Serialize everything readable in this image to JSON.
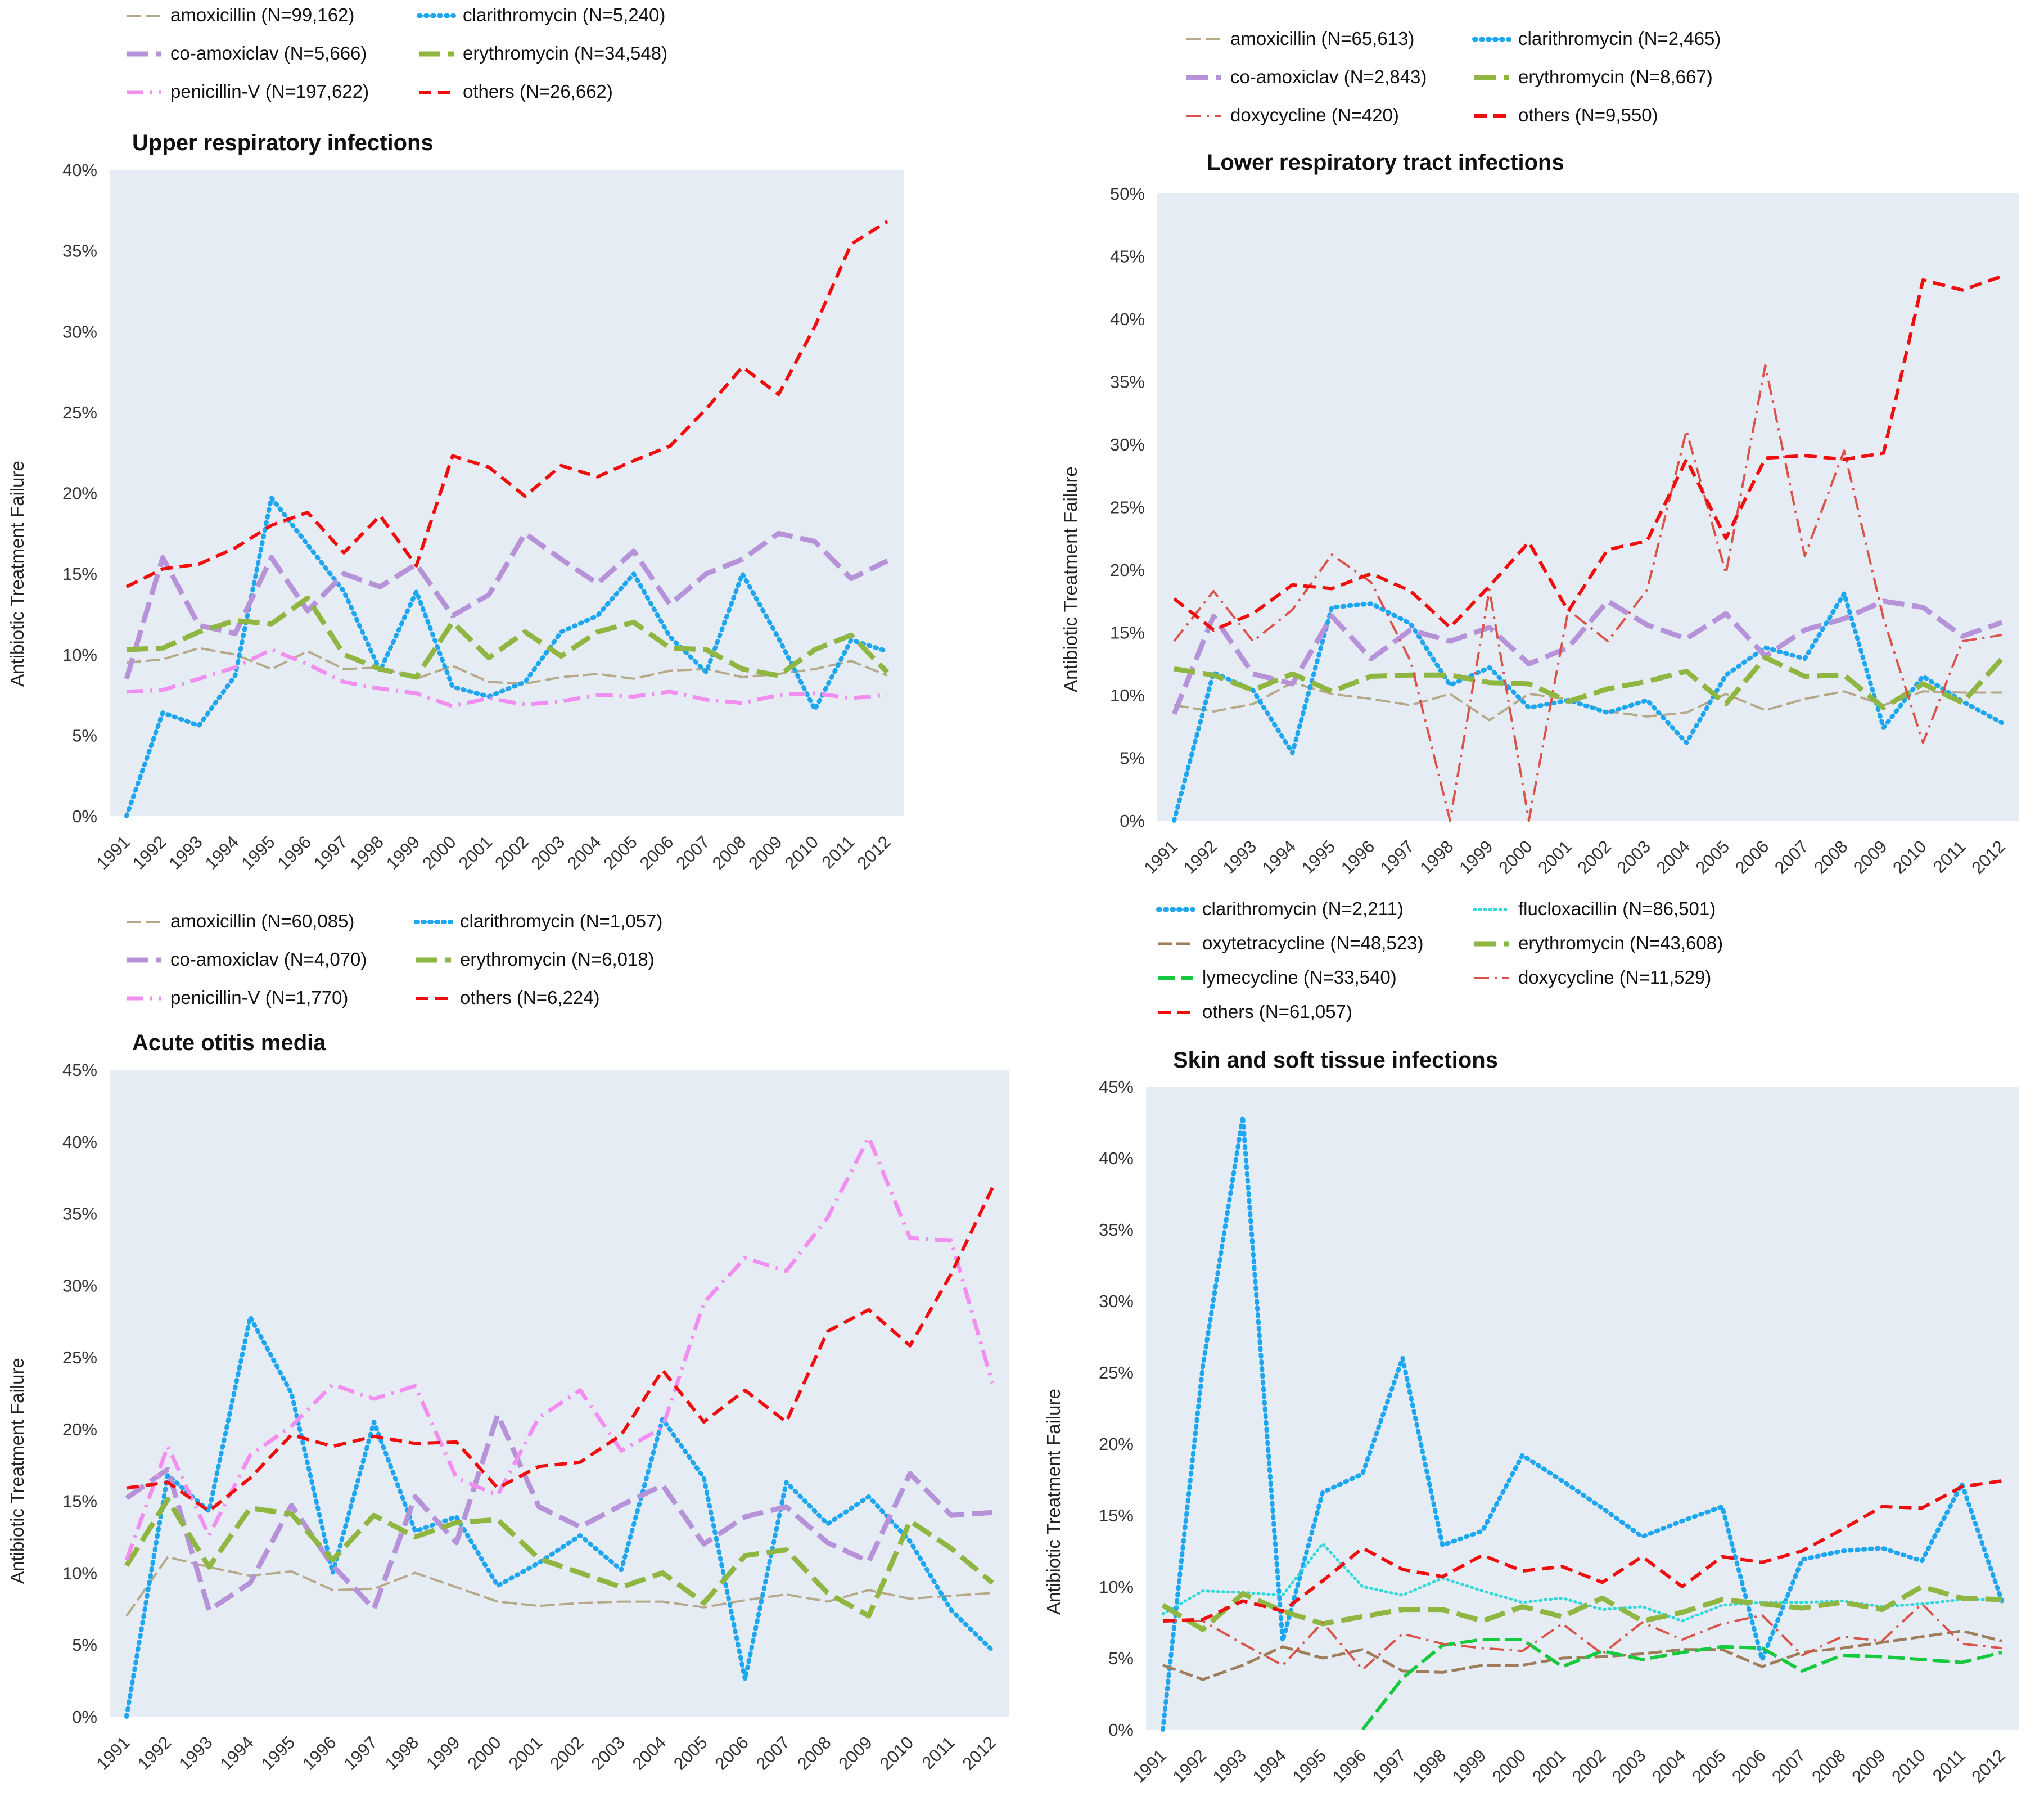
{
  "figure": {
    "y_axis_label": "Antibiotic Treatment Failure",
    "years": [
      "1991",
      "1992",
      "1993",
      "1994",
      "1995",
      "1996",
      "1997",
      "1998",
      "1999",
      "2000",
      "2001",
      "2002",
      "2003",
      "2004",
      "2005",
      "2006",
      "2007",
      "2008",
      "2009",
      "2010",
      "2011",
      "2012"
    ]
  },
  "styles": {
    "amoxicillin": {
      "color": "#b5a98a",
      "dash": "26,8",
      "width": 4
    },
    "clarithromycin": {
      "color": "#1ea7f0",
      "dash": "3,9",
      "width": 8,
      "cap": "round"
    },
    "co-amoxiclav": {
      "color": "#b693d9",
      "dash": "38,14",
      "width": 9
    },
    "erythromycin": {
      "color": "#8fb640",
      "dash": "38,14",
      "width": 9
    },
    "penicillin-V": {
      "color": "#f28ef0",
      "dash": "30,12,4,12",
      "width": 7
    },
    "others": {
      "color": "#f00d0d",
      "dash": "22,12",
      "width": 6
    },
    "doxycycline": {
      "color": "#d9534a",
      "dash": "26,10,4,10",
      "width": 4
    },
    "flucloxacillin": {
      "color": "#30d8d8",
      "dash": "2,7",
      "width": 5,
      "cap": "round"
    },
    "oxytetracycline": {
      "color": "#a07d5a",
      "dash": "24,8",
      "width": 5
    },
    "lymecycline": {
      "color": "#16c93e",
      "dash": "30,10",
      "width": 6
    }
  },
  "chart_data": [
    {
      "type": "line",
      "title": "Upper respiratory infections",
      "xlabel": "",
      "ylabel": "Antibiotic Treatment Failure",
      "ylim": [
        0,
        40
      ],
      "yticks": [
        "0%",
        "5%",
        "10%",
        "15%",
        "20%",
        "25%",
        "30%",
        "35%",
        "40%"
      ],
      "categories": [
        "1991",
        "1992",
        "1993",
        "1994",
        "1995",
        "1996",
        "1997",
        "1998",
        "1999",
        "2000",
        "2001",
        "2002",
        "2003",
        "2004",
        "2005",
        "2006",
        "2007",
        "2008",
        "2009",
        "2010",
        "2011",
        "2012"
      ],
      "legend_columns": 2,
      "series": [
        {
          "key": "amoxicillin",
          "name": "amoxicillin (N=99,162)",
          "values": [
            9.5,
            9.7,
            10.4,
            10.0,
            9.1,
            10.2,
            9.1,
            9.2,
            8.5,
            9.3,
            8.3,
            8.2,
            8.6,
            8.8,
            8.5,
            9.0,
            9.1,
            8.6,
            8.8,
            9.1,
            9.6,
            8.7
          ]
        },
        {
          "key": "clarithromycin",
          "name": "clarithromycin (N=5,240)",
          "values": [
            0.0,
            6.4,
            5.6,
            8.7,
            19.7,
            16.8,
            13.9,
            9.0,
            13.9,
            8.0,
            7.4,
            8.3,
            11.4,
            12.4,
            15.0,
            11.1,
            8.9,
            15.0,
            11.0,
            6.6,
            10.9,
            10.2
          ]
        },
        {
          "key": "co-amoxiclav",
          "name": "co-amoxiclav (N=5,666)",
          "values": [
            8.5,
            16.0,
            11.8,
            11.3,
            16.0,
            12.7,
            15.0,
            14.2,
            15.6,
            12.4,
            13.7,
            17.5,
            15.9,
            14.4,
            16.4,
            13.1,
            15.0,
            15.9,
            17.5,
            17.0,
            14.7,
            15.8
          ]
        },
        {
          "key": "erythromycin",
          "name": "erythromycin (N=34,548)",
          "values": [
            10.3,
            10.4,
            11.4,
            12.1,
            11.9,
            13.5,
            10.0,
            9.1,
            8.6,
            12.0,
            9.8,
            11.4,
            9.9,
            11.4,
            12.0,
            10.4,
            10.3,
            9.1,
            8.7,
            10.3,
            11.2,
            8.9
          ]
        },
        {
          "key": "penicillin-V",
          "name": "penicillin-V (N=197,622)",
          "values": [
            7.7,
            7.8,
            8.5,
            9.2,
            10.3,
            9.4,
            8.3,
            7.9,
            7.6,
            6.8,
            7.3,
            6.9,
            7.1,
            7.5,
            7.4,
            7.7,
            7.2,
            7.0,
            7.5,
            7.6,
            7.3,
            7.5
          ]
        },
        {
          "key": "others",
          "name": "others (N=26,662)",
          "values": [
            14.2,
            15.3,
            15.6,
            16.6,
            18.0,
            18.8,
            16.3,
            18.6,
            15.5,
            22.3,
            21.6,
            19.8,
            21.7,
            21.0,
            22.0,
            22.9,
            25.2,
            27.8,
            26.1,
            30.3,
            35.4,
            36.8
          ]
        }
      ]
    },
    {
      "type": "line",
      "title": "Lower respiratory tract infections",
      "xlabel": "",
      "ylabel": "Antibiotic Treatment Failure",
      "ylim": [
        0,
        50
      ],
      "yticks": [
        "0%",
        "5%",
        "10%",
        "15%",
        "20%",
        "25%",
        "30%",
        "35%",
        "40%",
        "45%",
        "50%"
      ],
      "categories": [
        "1991",
        "1992",
        "1993",
        "1994",
        "1995",
        "1996",
        "1997",
        "1998",
        "1999",
        "2000",
        "2001",
        "2002",
        "2003",
        "2004",
        "2005",
        "2006",
        "2007",
        "2008",
        "2009",
        "2010",
        "2011",
        "2012"
      ],
      "legend_columns": 2,
      "series": [
        {
          "key": "amoxicillin",
          "name": "amoxicillin (N=65,613)",
          "values": [
            9.2,
            8.7,
            9.3,
            11.0,
            10.1,
            9.7,
            9.2,
            10.1,
            8.0,
            10.1,
            9.7,
            8.7,
            8.3,
            8.6,
            10.1,
            8.8,
            9.7,
            10.3,
            9.2,
            10.3,
            10.2,
            10.2
          ]
        },
        {
          "key": "clarithromycin",
          "name": "clarithromycin (N=2,465)",
          "values": [
            0.0,
            11.8,
            10.4,
            5.4,
            17.0,
            17.3,
            15.7,
            10.8,
            12.2,
            9.0,
            9.6,
            8.6,
            9.6,
            6.2,
            11.6,
            13.8,
            12.9,
            18.1,
            7.4,
            11.5,
            9.5,
            7.8
          ]
        },
        {
          "key": "co-amoxiclav",
          "name": "co-amoxiclav (N=2,843)",
          "values": [
            8.5,
            16.3,
            11.7,
            10.9,
            16.3,
            12.9,
            15.2,
            14.3,
            15.4,
            12.5,
            13.8,
            17.5,
            15.6,
            14.5,
            16.5,
            13.1,
            15.2,
            16.1,
            17.5,
            17.0,
            14.7,
            15.8
          ]
        },
        {
          "key": "erythromycin",
          "name": "erythromycin (N=8,667)",
          "values": [
            12.1,
            11.6,
            10.4,
            11.7,
            10.3,
            11.5,
            11.6,
            11.6,
            11.0,
            10.9,
            9.5,
            10.5,
            11.1,
            11.9,
            9.3,
            13.0,
            11.5,
            11.6,
            9.0,
            10.9,
            9.4,
            12.9
          ]
        },
        {
          "key": "doxycycline",
          "name": "doxycycline (N=420)",
          "values": [
            14.3,
            18.3,
            14.3,
            16.8,
            21.2,
            19.0,
            12.7,
            0.0,
            18.4,
            0.0,
            16.8,
            14.3,
            18.4,
            31.1,
            19.7,
            36.3,
            21.1,
            29.5,
            16.1,
            6.2,
            14.3,
            14.8
          ]
        },
        {
          "key": "others",
          "name": "others (N=9,550)",
          "values": [
            17.7,
            15.2,
            16.5,
            18.8,
            18.5,
            19.7,
            18.3,
            15.4,
            18.7,
            22.2,
            16.7,
            21.6,
            22.3,
            28.8,
            22.5,
            28.9,
            29.1,
            28.8,
            29.3,
            43.1,
            42.3,
            43.4
          ]
        }
      ]
    },
    {
      "type": "line",
      "title": "Acute otitis media",
      "xlabel": "",
      "ylabel": "Antibiotic Treatment Failure",
      "ylim": [
        0,
        45
      ],
      "yticks": [
        "0%",
        "5%",
        "10%",
        "15%",
        "20%",
        "25%",
        "30%",
        "35%",
        "40%",
        "45%"
      ],
      "categories": [
        "1991",
        "1992",
        "1993",
        "1994",
        "1995",
        "1996",
        "1997",
        "1998",
        "1999",
        "2000",
        "2001",
        "2002",
        "2003",
        "2004",
        "2005",
        "2006",
        "2007",
        "2008",
        "2009",
        "2010",
        "2011",
        "2012"
      ],
      "legend_columns": 2,
      "series": [
        {
          "key": "amoxicillin",
          "name": "amoxicillin (N=60,085)",
          "values": [
            7.0,
            11.1,
            10.4,
            9.8,
            10.1,
            8.8,
            8.9,
            10.0,
            9.0,
            8.0,
            7.7,
            7.9,
            8.0,
            8.0,
            7.6,
            8.1,
            8.5,
            8.0,
            8.8,
            8.2,
            8.4,
            8.6
          ]
        },
        {
          "key": "clarithromycin",
          "name": "clarithromycin (N=1,057)",
          "values": [
            0.0,
            16.8,
            14.3,
            27.8,
            22.5,
            10.0,
            20.5,
            12.9,
            13.9,
            9.1,
            10.7,
            12.6,
            10.2,
            20.7,
            16.6,
            2.6,
            16.3,
            13.4,
            15.3,
            12.2,
            7.4,
            4.6
          ]
        },
        {
          "key": "co-amoxiclav",
          "name": "co-amoxiclav (N=4,070)",
          "values": [
            15.2,
            17.2,
            7.4,
            9.3,
            14.7,
            10.5,
            7.5,
            15.3,
            12.1,
            21.0,
            14.6,
            13.2,
            14.7,
            16.1,
            12.0,
            13.9,
            14.6,
            12.1,
            10.8,
            16.9,
            14.0,
            14.2
          ]
        },
        {
          "key": "erythromycin",
          "name": "erythromycin (N=6,018)",
          "values": [
            10.5,
            15.1,
            10.4,
            14.5,
            14.1,
            10.9,
            14.0,
            12.5,
            13.5,
            13.7,
            11.0,
            10.0,
            9.0,
            10.0,
            7.9,
            11.2,
            11.6,
            8.6,
            7.0,
            13.6,
            11.7,
            9.3
          ]
        },
        {
          "key": "penicillin-V",
          "name": "penicillin-V (N=1,770)",
          "values": [
            10.9,
            18.8,
            12.6,
            18.2,
            20.2,
            23.1,
            22.1,
            23.0,
            16.6,
            15.4,
            20.8,
            22.7,
            18.5,
            20.1,
            28.8,
            31.9,
            31.0,
            34.7,
            40.3,
            33.3,
            33.1,
            23.2
          ]
        },
        {
          "key": "others",
          "name": "others (N=6,224)",
          "values": [
            15.9,
            16.3,
            14.3,
            16.6,
            19.6,
            18.8,
            19.5,
            19.0,
            19.1,
            15.9,
            17.4,
            17.7,
            19.6,
            24.1,
            20.5,
            22.7,
            20.5,
            26.8,
            28.3,
            25.8,
            30.8,
            36.8
          ]
        }
      ]
    },
    {
      "type": "line",
      "title": "Skin and soft tissue infections",
      "xlabel": "",
      "ylabel": "Antibiotic Treatment Failure",
      "ylim": [
        0,
        45
      ],
      "yticks": [
        "0%",
        "5%",
        "10%",
        "15%",
        "20%",
        "25%",
        "30%",
        "35%",
        "40%",
        "45%"
      ],
      "categories": [
        "1991",
        "1992",
        "1993",
        "1994",
        "1995",
        "1996",
        "1997",
        "1998",
        "1999",
        "2000",
        "2001",
        "2002",
        "2003",
        "2004",
        "2005",
        "2006",
        "2007",
        "2008",
        "2009",
        "2010",
        "2011",
        "2012"
      ],
      "legend_columns": 2,
      "series": [
        {
          "key": "clarithromycin",
          "name": "clarithromycin (N=2,211)",
          "values": [
            0.0,
            25.4,
            42.9,
            6.2,
            16.6,
            17.9,
            26.0,
            12.9,
            13.9,
            19.2,
            17.4,
            15.5,
            13.5,
            14.6,
            15.6,
            4.9,
            11.9,
            12.5,
            12.7,
            11.8,
            17.2,
            9.0
          ]
        },
        {
          "key": "flucloxacillin",
          "name": "flucloxacillin (N=86,501)",
          "values": [
            8.1,
            9.7,
            9.6,
            9.4,
            13.0,
            10.0,
            9.4,
            10.6,
            9.7,
            8.9,
            9.2,
            8.4,
            8.6,
            7.6,
            8.7,
            8.9,
            8.9,
            9.0,
            8.6,
            8.8,
            9.1,
            9.1
          ]
        },
        {
          "key": "oxytetracycline",
          "name": "oxytetracycline (N=48,523)",
          "values": [
            4.5,
            3.5,
            4.5,
            5.8,
            5.0,
            5.6,
            4.1,
            4.0,
            4.5,
            4.5,
            5.0,
            5.1,
            5.3,
            5.6,
            5.6,
            4.4,
            5.4,
            5.7,
            6.1,
            6.5,
            6.9,
            6.2
          ]
        },
        {
          "key": "erythromycin",
          "name": "erythromycin (N=43,608)",
          "values": [
            8.7,
            7.0,
            9.5,
            8.3,
            7.4,
            7.9,
            8.4,
            8.4,
            7.6,
            8.6,
            7.9,
            9.2,
            7.6,
            8.2,
            9.1,
            8.8,
            8.5,
            8.9,
            8.4,
            10.0,
            9.2,
            9.1
          ]
        },
        {
          "key": "lymecycline",
          "name": "lymecycline (N=33,540)",
          "values": [
            null,
            null,
            null,
            null,
            null,
            0.0,
            3.6,
            5.9,
            6.3,
            6.3,
            4.4,
            5.5,
            4.9,
            5.4,
            5.8,
            5.7,
            4.1,
            5.2,
            5.1,
            4.9,
            4.7,
            5.4
          ]
        },
        {
          "key": "doxycycline",
          "name": "doxycycline (N=11,529)",
          "values": [
            7.6,
            7.6,
            6.0,
            4.5,
            7.5,
            4.2,
            6.7,
            6.0,
            5.7,
            5.5,
            7.4,
            5.3,
            7.5,
            6.3,
            7.4,
            8.0,
            5.2,
            6.5,
            6.2,
            8.8,
            6.0,
            5.7
          ]
        },
        {
          "key": "others",
          "name": "others (N=61,057)",
          "values": [
            7.6,
            7.7,
            9.0,
            8.3,
            10.4,
            12.7,
            11.2,
            10.7,
            12.2,
            11.1,
            11.4,
            10.3,
            12.1,
            10.0,
            12.1,
            11.7,
            12.5,
            14.0,
            15.6,
            15.5,
            17.0,
            17.4
          ]
        }
      ]
    }
  ]
}
